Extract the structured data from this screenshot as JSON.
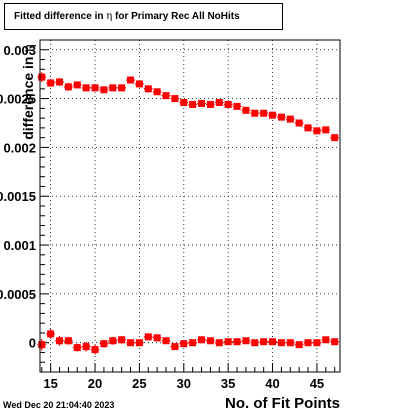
{
  "title_parts": {
    "prefix": "Fitted difference in",
    "symbol": "η",
    "suffix": "for Primary Rec All NoHits"
  },
  "ylabel_parts": {
    "text": "difference in",
    "symbol": "η"
  },
  "timestamp": "Wed Dec 20 21:04:40 2023",
  "chart_data": {
    "type": "scatter",
    "xlabel": "No. of Fit Points",
    "ylabel": "difference in η",
    "xlim": [
      13.8,
      47.6
    ],
    "ylim": [
      -0.0003,
      0.0031
    ],
    "x_ticks": [
      15,
      20,
      25,
      30,
      35,
      40,
      45
    ],
    "y_ticks": [
      {
        "value": 0,
        "label": "0"
      },
      {
        "value": 0.0005,
        "label": "0.0005"
      },
      {
        "value": 0.001,
        "label": "0.001"
      },
      {
        "value": 0.0015,
        "label": "0.0015"
      },
      {
        "value": 0.002,
        "label": "0.002"
      },
      {
        "value": 0.0025,
        "label": "0.0025"
      },
      {
        "value": 0.003,
        "label": "0.003"
      }
    ],
    "grid": true,
    "marker_color": "#ff0000",
    "series": [
      {
        "x": [
          14,
          15,
          16,
          17,
          18,
          19,
          20,
          21,
          22,
          23,
          24,
          25,
          26,
          27,
          28,
          29,
          30,
          31,
          32,
          33,
          34,
          35,
          36,
          37,
          38,
          39,
          40,
          41,
          42,
          43,
          44,
          45,
          46,
          47
        ],
        "y": [
          0.00272,
          0.00266,
          0.00267,
          0.00262,
          0.00264,
          0.00261,
          0.00261,
          0.00259,
          0.00261,
          0.00261,
          0.00269,
          0.00265,
          0.0026,
          0.00257,
          0.00253,
          0.0025,
          0.00246,
          0.00244,
          0.00245,
          0.00244,
          0.00246,
          0.00244,
          0.00242,
          0.00238,
          0.00235,
          0.00235,
          0.00233,
          0.00231,
          0.00229,
          0.00225,
          0.0022,
          0.00217,
          0.00218,
          0.0021
        ],
        "err": [
          5e-05,
          4e-05,
          4e-05,
          4e-05,
          3e-05,
          3e-05,
          3e-05,
          3e-05,
          3e-05,
          3e-05,
          3e-05,
          3e-05,
          3e-05,
          3e-05,
          3e-05,
          3e-05,
          2e-05,
          2e-05,
          2e-05,
          2e-05,
          2e-05,
          2e-05,
          2e-05,
          2e-05,
          2e-05,
          2e-05,
          2e-05,
          2e-05,
          2e-05,
          2e-05,
          2e-05,
          2e-05,
          3e-05,
          3e-05
        ]
      },
      {
        "x": [
          14,
          15,
          16,
          17,
          18,
          19,
          20,
          21,
          22,
          23,
          24,
          25,
          26,
          27,
          28,
          29,
          30,
          31,
          32,
          33,
          34,
          35,
          36,
          37,
          38,
          39,
          40,
          41,
          42,
          43,
          44,
          45,
          46,
          47
        ],
        "y": [
          -2e-05,
          9e-05,
          2e-05,
          2e-05,
          -5e-05,
          -4e-05,
          -7e-05,
          -1e-05,
          2e-05,
          3e-05,
          0.0,
          0.0,
          6e-05,
          5e-05,
          2e-05,
          -4e-05,
          -1e-05,
          0.0,
          3e-05,
          2e-05,
          0.0,
          1e-05,
          1e-05,
          2e-05,
          0.0,
          1e-05,
          1e-05,
          0.0,
          0.0,
          -2e-05,
          0.0,
          0.0,
          3e-05,
          1e-05
        ],
        "err": [
          6e-05,
          5e-05,
          5e-05,
          4e-05,
          4e-05,
          5e-05,
          5e-05,
          4e-05,
          4e-05,
          4e-05,
          3e-05,
          3e-05,
          3e-05,
          3e-05,
          3e-05,
          3e-05,
          2e-05,
          2e-05,
          2e-05,
          2e-05,
          2e-05,
          2e-05,
          2e-05,
          2e-05,
          2e-05,
          2e-05,
          2e-05,
          2e-05,
          2e-05,
          2e-05,
          2e-05,
          2e-05,
          2e-05,
          2e-05
        ]
      }
    ]
  }
}
